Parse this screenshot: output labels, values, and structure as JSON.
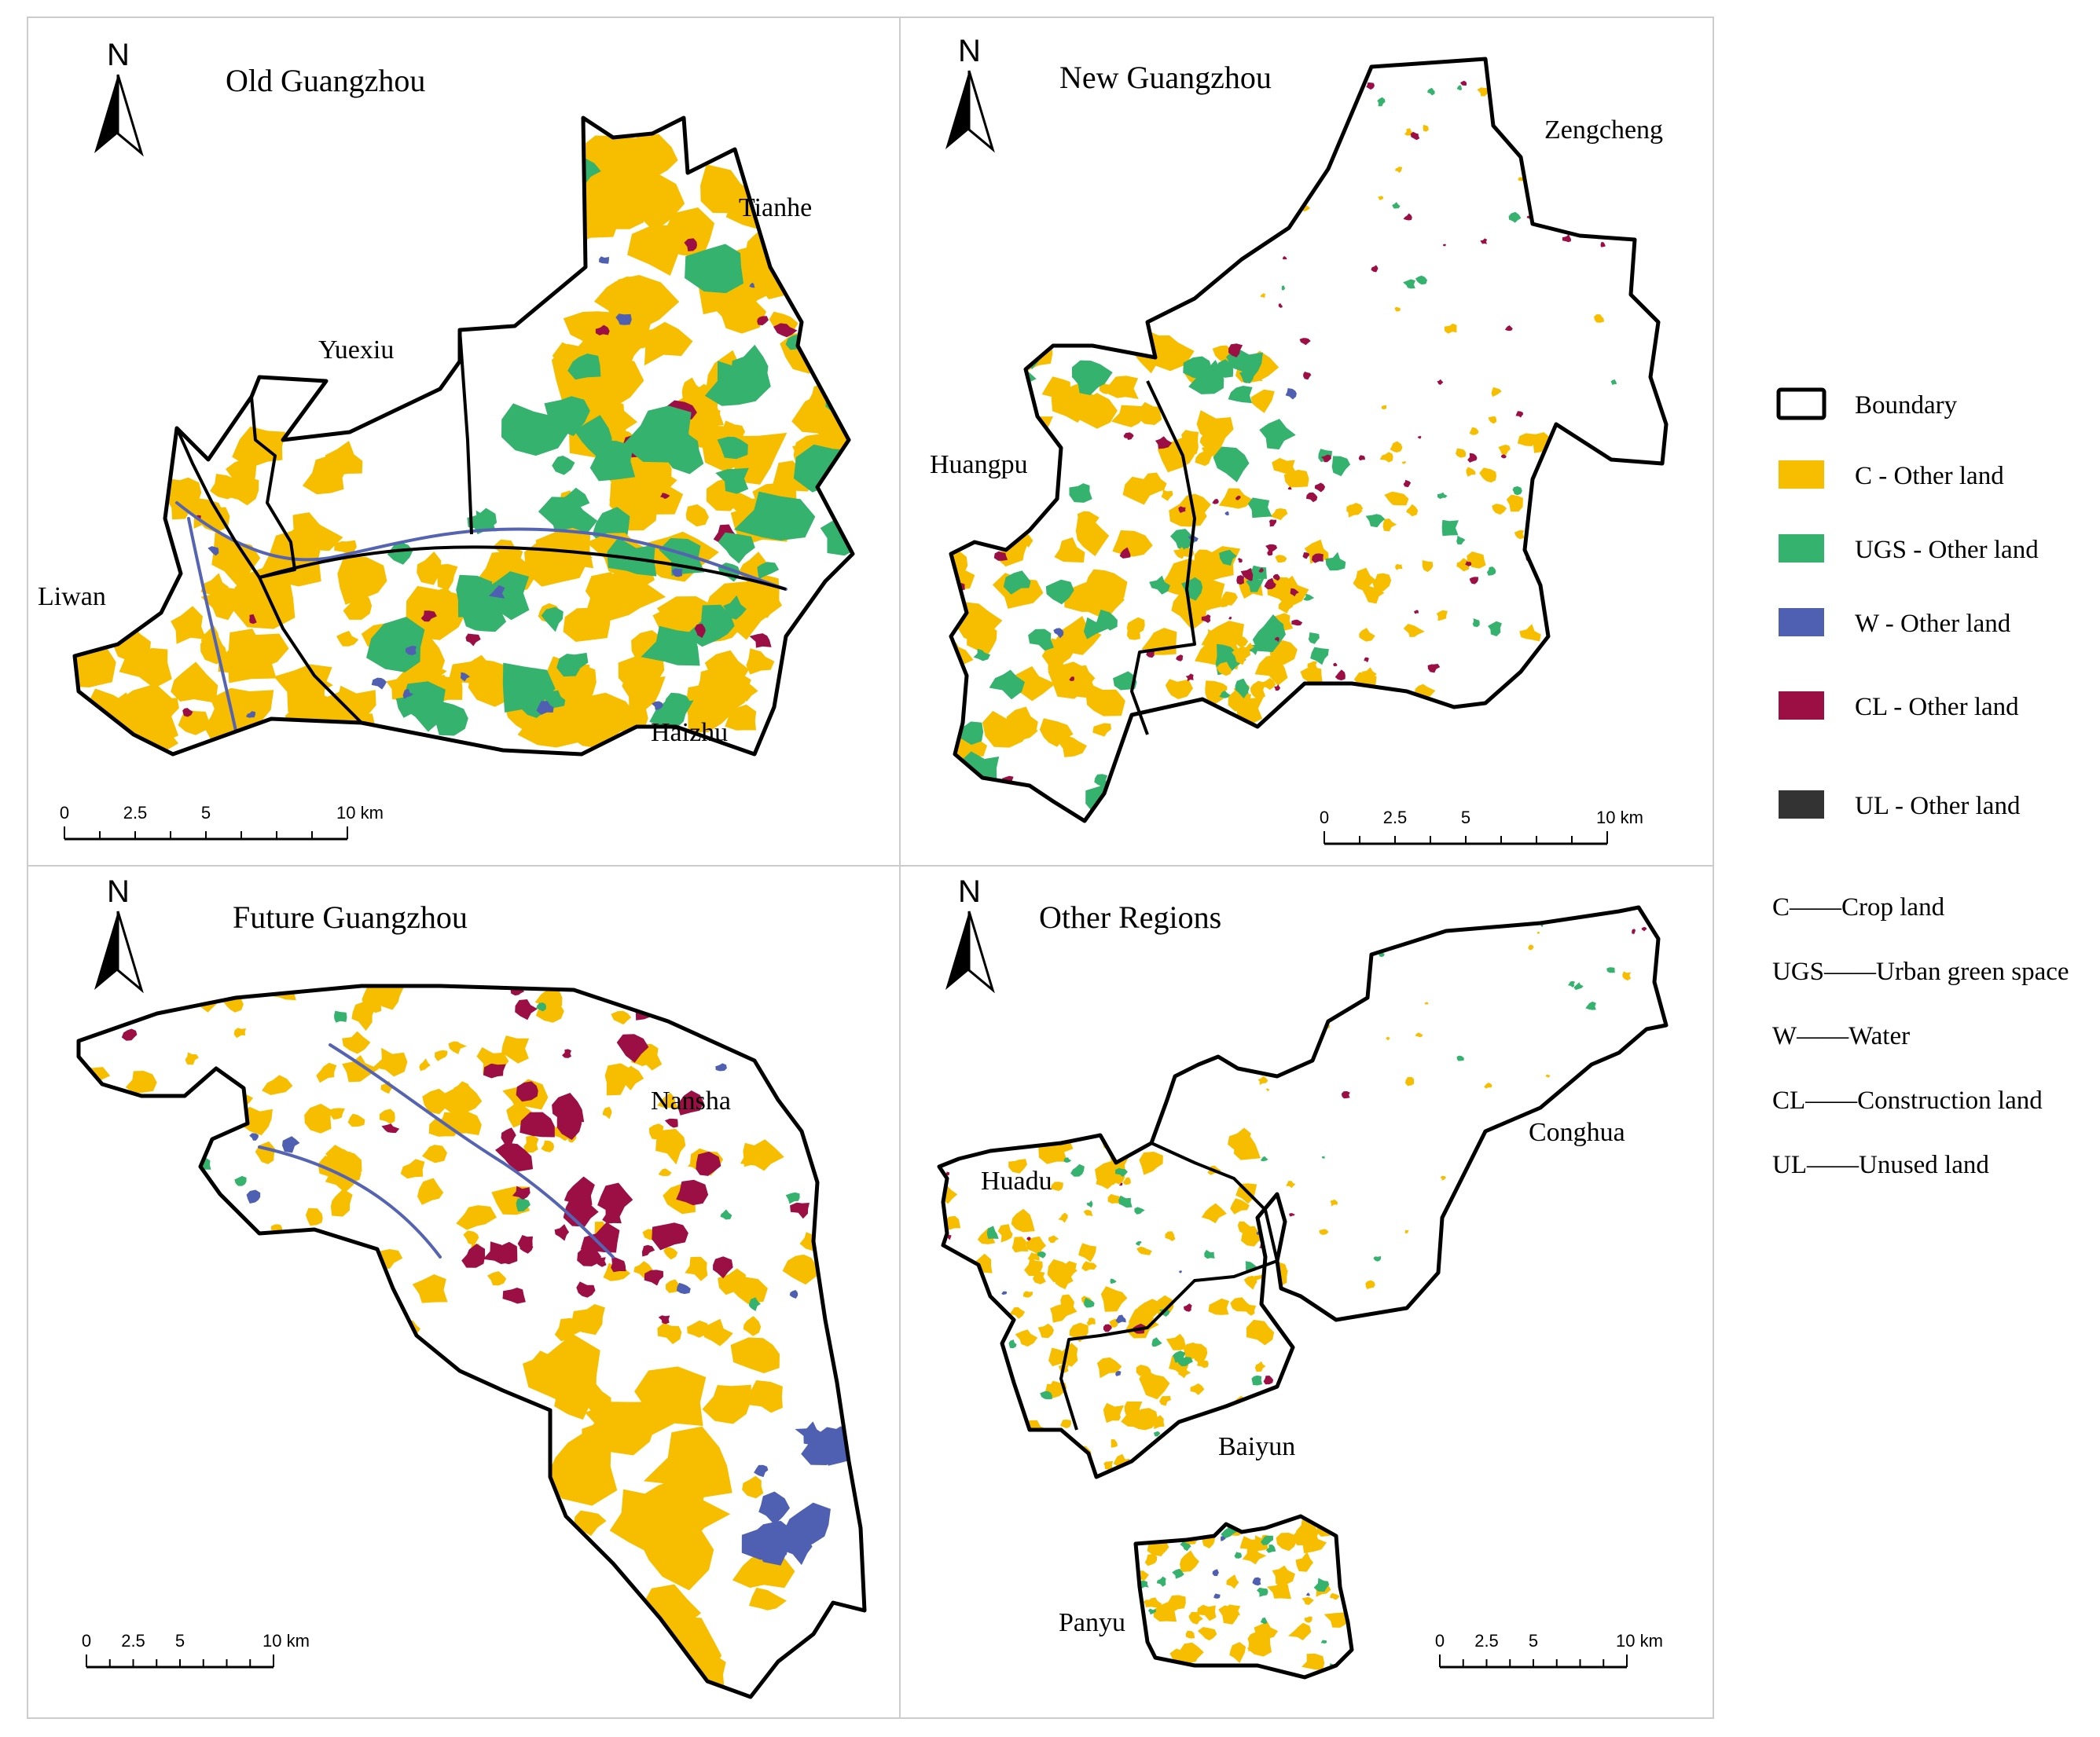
{
  "panels": [
    {
      "id": "old",
      "title": "Old Guangzhou",
      "districts": [
        "Yuexiu",
        "Tianhe",
        "Liwan",
        "Haizhu"
      ],
      "scale": {
        "ticks": [
          "0",
          "2.5",
          "5",
          "10 km"
        ]
      }
    },
    {
      "id": "new",
      "title": "New Guangzhou",
      "districts": [
        "Zengcheng",
        "Huangpu"
      ],
      "scale": {
        "ticks": [
          "0",
          "2.5",
          "5",
          "10 km"
        ]
      }
    },
    {
      "id": "future",
      "title": "Future Guangzhou",
      "districts": [
        "Nansha"
      ],
      "scale": {
        "ticks": [
          "0",
          "2.5",
          "5",
          "10 km"
        ]
      }
    },
    {
      "id": "other",
      "title": "Other Regions",
      "districts": [
        "Conghua",
        "Huadu",
        "Baiyun",
        "Panyu"
      ],
      "scale": {
        "ticks": [
          "0",
          "2.5",
          "5",
          "10 km"
        ]
      }
    }
  ],
  "north_label": "N",
  "legend": [
    {
      "key": "boundary",
      "label": "Boundary",
      "color": "#ffffff"
    },
    {
      "key": "C",
      "label": "C - Other land",
      "color": "#f7be00"
    },
    {
      "key": "UGS",
      "label": "UGS - Other land",
      "color": "#35b26d"
    },
    {
      "key": "W",
      "label": "W - Other land",
      "color": "#4f60b3"
    },
    {
      "key": "CL",
      "label": "CL - Other land",
      "color": "#9c0f45"
    },
    {
      "key": "UL",
      "label": "UL - Other land",
      "color": "#333333"
    }
  ],
  "abbreviations": [
    {
      "abbr": "C",
      "dash": "——",
      "meaning": "Crop land"
    },
    {
      "abbr": "UGS",
      "dash": "——",
      "meaning": "Urban green space"
    },
    {
      "abbr": "W",
      "dash": "——",
      "meaning": "Water"
    },
    {
      "abbr": "CL",
      "dash": "——",
      "meaning": "Construction land"
    },
    {
      "abbr": "UL",
      "dash": "——",
      "meaning": "Unused land"
    }
  ]
}
